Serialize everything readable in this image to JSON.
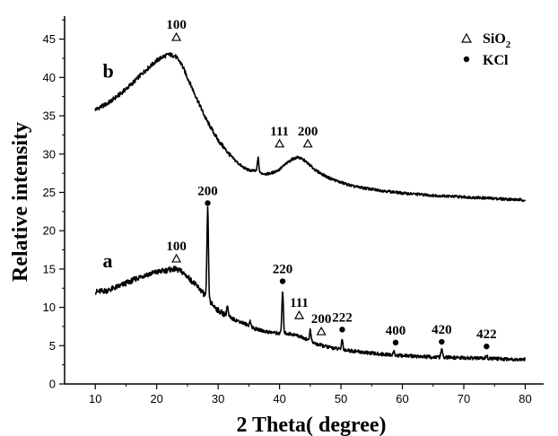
{
  "chart_data": {
    "type": "line",
    "xlabel": "2 Theta( degree)",
    "ylabel": "Relative intensity",
    "xlim": [
      5,
      83
    ],
    "ylim": [
      0,
      48
    ],
    "x_ticks": [
      10,
      20,
      30,
      40,
      50,
      60,
      70,
      80
    ],
    "y_ticks": [
      0,
      5,
      10,
      15,
      20,
      25,
      30,
      35,
      40,
      45
    ],
    "grid": false,
    "legend": {
      "placement": "top-right",
      "items": [
        {
          "marker": "triangle",
          "prefix": "SiO",
          "sub": "2"
        },
        {
          "marker": "circle",
          "text": "KCl"
        }
      ]
    },
    "series": [
      {
        "name": "b",
        "x": [
          10,
          12,
          14,
          16,
          18,
          20,
          21,
          22,
          23,
          24,
          25,
          26,
          27,
          28,
          29,
          30,
          31,
          32,
          33,
          34,
          35,
          36,
          37,
          38,
          39,
          40,
          41,
          42,
          43,
          44,
          45,
          46,
          48,
          50,
          52,
          55,
          58,
          60,
          65,
          70,
          75,
          80
        ],
        "y": [
          35.8,
          36.6,
          37.8,
          39.2,
          40.8,
          42.2,
          42.7,
          43.0,
          42.8,
          41.8,
          40.0,
          38.2,
          36.4,
          34.6,
          33.2,
          31.8,
          30.8,
          29.8,
          29.0,
          28.3,
          27.9,
          27.8,
          27.5,
          27.4,
          27.6,
          28.0,
          28.7,
          29.3,
          29.6,
          29.2,
          28.5,
          27.8,
          26.9,
          26.3,
          25.8,
          25.4,
          25.1,
          24.9,
          24.6,
          24.4,
          24.2,
          24.0
        ],
        "peaks": [
          {
            "x": 36.5,
            "y": 29.5
          }
        ]
      },
      {
        "name": "a",
        "x": [
          10,
          12,
          14,
          16,
          18,
          20,
          22,
          23,
          24,
          25,
          26,
          27,
          28,
          29,
          30,
          32,
          34,
          36,
          38,
          40,
          41,
          42,
          43,
          44,
          45,
          46,
          48,
          50,
          52,
          55,
          58,
          60,
          65,
          70,
          75,
          80
        ],
        "y": [
          12.0,
          12.2,
          12.8,
          13.5,
          14.2,
          14.6,
          14.9,
          15.0,
          14.7,
          14.0,
          13.2,
          12.4,
          11.4,
          10.4,
          9.6,
          8.6,
          8.0,
          7.2,
          6.8,
          6.6,
          6.6,
          6.5,
          6.3,
          6.0,
          5.6,
          5.2,
          4.8,
          4.5,
          4.3,
          4.0,
          3.8,
          3.7,
          3.5,
          3.4,
          3.3,
          3.2
        ],
        "peaks": [
          {
            "x": 28.3,
            "y": 22.8
          },
          {
            "x": 31.5,
            "y": 10.2
          },
          {
            "x": 35.2,
            "y": 8.2
          },
          {
            "x": 40.5,
            "y": 12.0
          },
          {
            "x": 45.0,
            "y": 7.0
          },
          {
            "x": 50.2,
            "y": 5.8
          },
          {
            "x": 58.6,
            "y": 4.2
          },
          {
            "x": 66.4,
            "y": 4.6
          },
          {
            "x": 73.7,
            "y": 3.8
          }
        ]
      }
    ],
    "annotations": [
      {
        "x": 23.2,
        "y": 45.3,
        "label": "100",
        "marker": "triangle"
      },
      {
        "x": 40.0,
        "y": 31.4,
        "label": "111",
        "marker": "triangle"
      },
      {
        "x": 44.6,
        "y": 31.4,
        "label": "200",
        "marker": "triangle"
      },
      {
        "x": 28.3,
        "y": 23.6,
        "label": "200",
        "marker": "circle"
      },
      {
        "x": 23.2,
        "y": 16.4,
        "label": "100",
        "marker": "triangle"
      },
      {
        "x": 40.5,
        "y": 13.4,
        "label": "220",
        "marker": "circle"
      },
      {
        "x": 43.2,
        "y": 9.0,
        "label": "111",
        "marker": "triangle"
      },
      {
        "x": 46.8,
        "y": 6.9,
        "label": "200",
        "marker": "triangle"
      },
      {
        "x": 50.2,
        "y": 7.1,
        "label": "222",
        "marker": "circle"
      },
      {
        "x": 58.9,
        "y": 5.4,
        "label": "400",
        "marker": "circle"
      },
      {
        "x": 66.4,
        "y": 5.5,
        "label": "420",
        "marker": "circle"
      },
      {
        "x": 73.7,
        "y": 4.9,
        "label": "422",
        "marker": "circle"
      }
    ],
    "series_labels": [
      {
        "text": "b",
        "x": 11.2,
        "y": 40.0
      },
      {
        "text": "a",
        "x": 11.2,
        "y": 15.2
      }
    ]
  }
}
